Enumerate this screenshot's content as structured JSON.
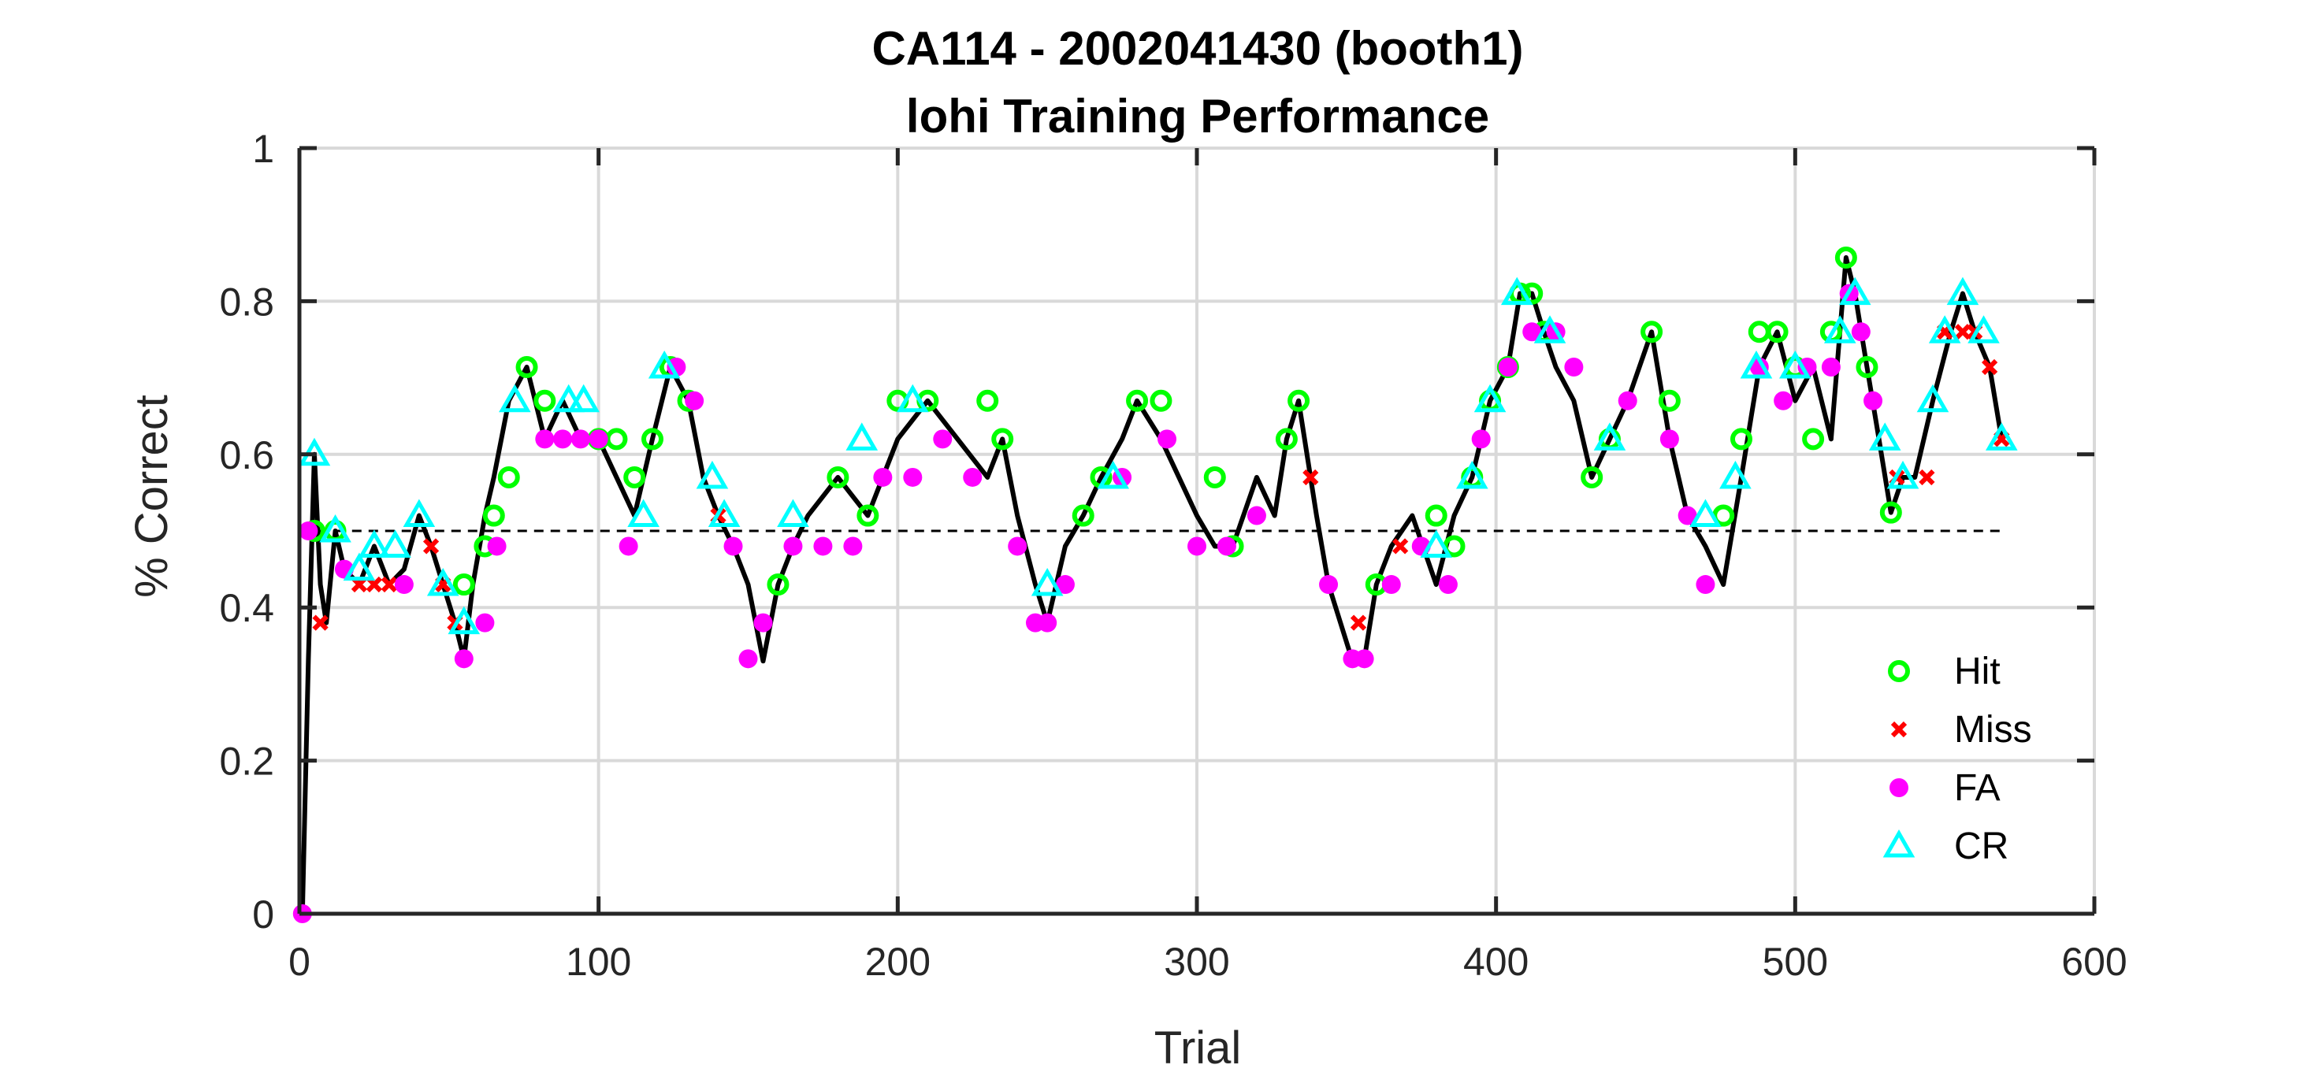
{
  "chart_data": {
    "type": "line",
    "title": [
      "CA114 - 2002041430 (booth1)",
      "lohi Training Performance"
    ],
    "xlabel": "Trial",
    "ylabel": "% Correct",
    "xlim": [
      0,
      600
    ],
    "ylim": [
      0,
      1
    ],
    "xticks": [
      0,
      100,
      200,
      300,
      400,
      500,
      600
    ],
    "yticks": [
      0,
      0.2,
      0.4,
      0.6,
      0.8,
      1
    ],
    "xtick_labels": [
      "0",
      "100",
      "200",
      "300",
      "400",
      "500",
      "600"
    ],
    "ytick_labels": [
      "0",
      "0.2",
      "0.4",
      "0.6",
      "0.8",
      "1"
    ],
    "grid": true,
    "reference_line": {
      "y": 0.5,
      "style": "dashed",
      "x_range": [
        1,
        570
      ]
    },
    "legend_position": "bottom-right",
    "colors": {
      "line": "#000000",
      "Hit": "#00ff00",
      "Miss": "#ff0000",
      "FA": "#ff00ff",
      "CR": "#00ffff",
      "grid": "#d9d9d9",
      "axis": "#262626"
    },
    "performance_trace": {
      "name": "",
      "x": [
        1,
        3,
        5,
        7,
        9,
        12,
        15,
        20,
        25,
        30,
        35,
        40,
        44,
        48,
        52,
        55,
        58,
        62,
        65,
        70,
        76,
        82,
        88,
        94,
        100,
        106,
        112,
        118,
        124,
        130,
        135,
        140,
        145,
        150,
        155,
        160,
        165,
        170,
        180,
        190,
        200,
        210,
        220,
        230,
        235,
        240,
        246,
        250,
        256,
        262,
        268,
        275,
        280,
        288,
        294,
        300,
        306,
        312,
        320,
        326,
        330,
        334,
        340,
        344,
        348,
        352,
        356,
        360,
        365,
        372,
        380,
        386,
        392,
        398,
        404,
        408,
        412,
        416,
        420,
        426,
        432,
        438,
        444,
        452,
        458,
        464,
        470,
        476,
        482,
        488,
        494,
        500,
        506,
        512,
        517,
        520,
        524,
        528,
        532,
        536,
        540,
        546,
        552,
        556,
        560,
        565,
        569
      ],
      "y": [
        0,
        0.333,
        0.6,
        0.43,
        0.38,
        0.5,
        0.45,
        0.43,
        0.48,
        0.43,
        0.45,
        0.52,
        0.48,
        0.43,
        0.38,
        0.333,
        0.43,
        0.52,
        0.57,
        0.67,
        0.714,
        0.62,
        0.67,
        0.62,
        0.62,
        0.57,
        0.52,
        0.62,
        0.714,
        0.67,
        0.57,
        0.52,
        0.48,
        0.43,
        0.33,
        0.43,
        0.48,
        0.52,
        0.57,
        0.52,
        0.62,
        0.67,
        0.62,
        0.57,
        0.62,
        0.52,
        0.43,
        0.38,
        0.48,
        0.52,
        0.57,
        0.62,
        0.67,
        0.62,
        0.57,
        0.52,
        0.48,
        0.48,
        0.57,
        0.52,
        0.62,
        0.67,
        0.52,
        0.43,
        0.38,
        0.33,
        0.333,
        0.43,
        0.48,
        0.52,
        0.43,
        0.52,
        0.57,
        0.67,
        0.714,
        0.81,
        0.81,
        0.76,
        0.714,
        0.67,
        0.57,
        0.62,
        0.67,
        0.76,
        0.62,
        0.52,
        0.48,
        0.43,
        0.57,
        0.714,
        0.76,
        0.67,
        0.714,
        0.62,
        0.857,
        0.81,
        0.714,
        0.62,
        0.524,
        0.57,
        0.57,
        0.67,
        0.76,
        0.81,
        0.76,
        0.714,
        0.62
      ]
    },
    "series": [
      {
        "name": "Hit",
        "marker": "circle-open",
        "x": [
          5,
          12,
          55,
          62,
          65,
          70,
          76,
          82,
          100,
          106,
          112,
          118,
          124,
          130,
          160,
          180,
          190,
          200,
          210,
          230,
          235,
          262,
          268,
          280,
          288,
          306,
          312,
          330,
          334,
          360,
          380,
          386,
          392,
          398,
          404,
          408,
          412,
          416,
          432,
          438,
          452,
          458,
          476,
          482,
          488,
          494,
          500,
          506,
          512,
          517,
          524,
          532
        ],
        "y": [
          0.5,
          0.5,
          0.43,
          0.48,
          0.52,
          0.57,
          0.714,
          0.67,
          0.62,
          0.62,
          0.57,
          0.62,
          0.714,
          0.67,
          0.43,
          0.57,
          0.52,
          0.67,
          0.67,
          0.67,
          0.62,
          0.52,
          0.57,
          0.67,
          0.67,
          0.57,
          0.48,
          0.62,
          0.67,
          0.43,
          0.52,
          0.48,
          0.57,
          0.67,
          0.714,
          0.81,
          0.81,
          0.76,
          0.57,
          0.62,
          0.76,
          0.67,
          0.52,
          0.62,
          0.76,
          0.76,
          0.714,
          0.62,
          0.76,
          0.857,
          0.714,
          0.524
        ]
      },
      {
        "name": "Miss",
        "marker": "x",
        "x": [
          7,
          20,
          25,
          30,
          44,
          48,
          52,
          140,
          338,
          354,
          368,
          534,
          544,
          550,
          556,
          560,
          565,
          569
        ],
        "y": [
          0.38,
          0.43,
          0.43,
          0.43,
          0.48,
          0.43,
          0.38,
          0.52,
          0.57,
          0.38,
          0.48,
          0.57,
          0.57,
          0.76,
          0.76,
          0.76,
          0.714,
          0.62
        ],
        "y_upper_cluster": [
          0.667
        ]
      },
      {
        "name": "FA",
        "marker": "circle-filled",
        "x": [
          1,
          3,
          15,
          35,
          55,
          62,
          66,
          82,
          88,
          94,
          100,
          110,
          126,
          132,
          145,
          150,
          155,
          165,
          175,
          185,
          195,
          205,
          215,
          225,
          240,
          246,
          250,
          256,
          275,
          290,
          300,
          310,
          320,
          344,
          352,
          356,
          365,
          375,
          384,
          395,
          404,
          412,
          420,
          426,
          444,
          458,
          464,
          470,
          488,
          496,
          504,
          512,
          518,
          522,
          526
        ],
        "y": [
          0,
          0.5,
          0.45,
          0.43,
          0.333,
          0.38,
          0.48,
          0.62,
          0.62,
          0.62,
          0.62,
          0.48,
          0.714,
          0.67,
          0.48,
          0.333,
          0.38,
          0.48,
          0.48,
          0.48,
          0.57,
          0.57,
          0.62,
          0.57,
          0.48,
          0.38,
          0.38,
          0.43,
          0.57,
          0.62,
          0.48,
          0.48,
          0.52,
          0.43,
          0.333,
          0.333,
          0.43,
          0.48,
          0.43,
          0.62,
          0.714,
          0.76,
          0.76,
          0.714,
          0.67,
          0.62,
          0.52,
          0.43,
          0.714,
          0.67,
          0.714,
          0.714,
          0.81,
          0.76,
          0.67
        ]
      },
      {
        "name": "CR",
        "marker": "triangle-open",
        "x": [
          5,
          12,
          20,
          25,
          32,
          40,
          48,
          55,
          72,
          90,
          95,
          115,
          122,
          138,
          142,
          165,
          188,
          205,
          250,
          272,
          380,
          392,
          398,
          407,
          418,
          438,
          470,
          480,
          487,
          500,
          515,
          520,
          530,
          536,
          546,
          550,
          556,
          563,
          569
        ],
        "y": [
          0.6,
          0.5,
          0.45,
          0.48,
          0.48,
          0.52,
          0.43,
          0.38,
          0.67,
          0.67,
          0.67,
          0.52,
          0.714,
          0.57,
          0.52,
          0.52,
          0.62,
          0.67,
          0.43,
          0.57,
          0.48,
          0.57,
          0.67,
          0.81,
          0.76,
          0.62,
          0.52,
          0.57,
          0.714,
          0.714,
          0.76,
          0.81,
          0.62,
          0.57,
          0.67,
          0.76,
          0.81,
          0.76,
          0.62
        ]
      }
    ]
  }
}
